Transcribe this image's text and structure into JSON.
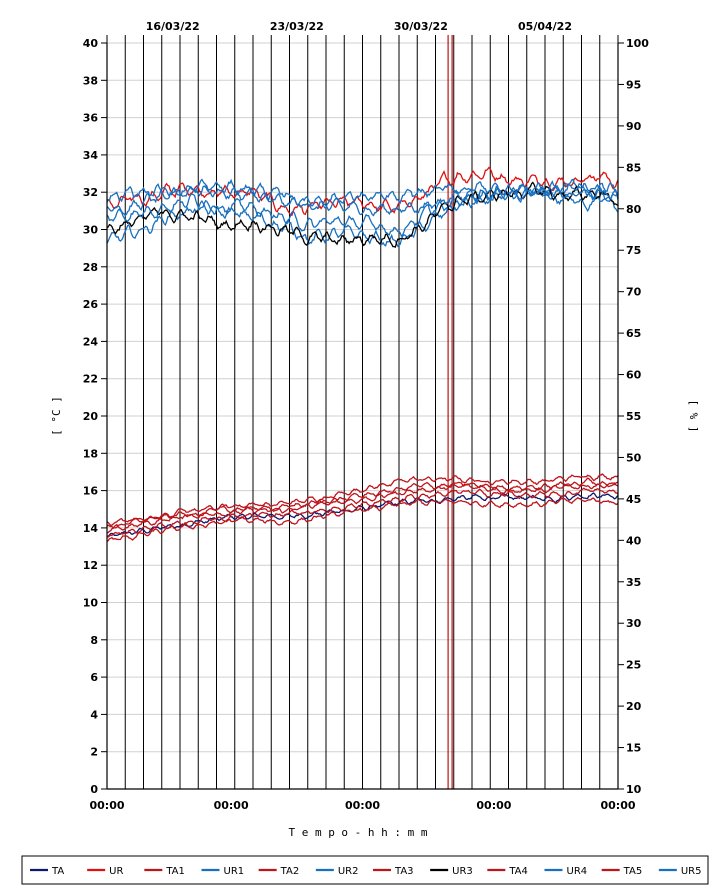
{
  "chart_data": {
    "type": "line",
    "title": "",
    "xlabel": "T e m p o   -   h h : m m",
    "ylabel_left": "[ °C ]",
    "ylabel_right": "[ % ]",
    "y_left_range": [
      0,
      40
    ],
    "y_left_ticks": [
      0,
      2,
      4,
      6,
      8,
      10,
      12,
      14,
      16,
      18,
      20,
      22,
      24,
      26,
      28,
      30,
      32,
      34,
      36,
      38,
      40
    ],
    "y_right_range": [
      10,
      100
    ],
    "y_right_ticks": [
      10,
      15,
      20,
      25,
      30,
      35,
      40,
      45,
      50,
      55,
      60,
      65,
      70,
      75,
      80,
      85,
      90,
      95,
      100
    ],
    "x_range_days": [
      0,
      35
    ],
    "x_tick_labels": [
      {
        "day": 0,
        "label": "00:00"
      },
      {
        "day": 8.5,
        "label": "00:00"
      },
      {
        "day": 17.5,
        "label": "00:00"
      },
      {
        "day": 26.5,
        "label": "00:00"
      },
      {
        "day": 35,
        "label": "00:00"
      }
    ],
    "date_labels": [
      {
        "day": 4.5,
        "label": "16/03/22"
      },
      {
        "day": 13,
        "label": "23/03/22"
      },
      {
        "day": 21.5,
        "label": "30/03/22"
      },
      {
        "day": 30,
        "label": "05/04/22"
      }
    ],
    "marker_day": 23.5,
    "grid": true,
    "legend_position": "bottom",
    "series": [
      {
        "name": "TA",
        "axis": "left",
        "color": "#0a1a6e",
        "x": [
          0,
          3,
          6,
          9,
          12,
          15,
          18,
          21,
          24,
          27,
          30,
          33,
          35
        ],
        "y": [
          13.5,
          13.9,
          14.3,
          14.6,
          14.6,
          14.8,
          15.1,
          15.4,
          15.6,
          15.6,
          15.6,
          15.8,
          15.7
        ]
      },
      {
        "name": "UR",
        "axis": "right",
        "color": "#e01010",
        "x": [
          0,
          2,
          4,
          6,
          8,
          10,
          12,
          14,
          16,
          18,
          20,
          22,
          24,
          26,
          28,
          30,
          32,
          34,
          35
        ],
        "y": [
          80.5,
          81,
          82,
          82.5,
          82,
          82,
          80,
          80,
          80.5,
          80.5,
          80,
          82,
          84,
          84.5,
          83.5,
          83.5,
          83.5,
          84,
          83
        ]
      },
      {
        "name": "TA1",
        "axis": "left",
        "color": "#c0141c",
        "x": [
          0,
          3,
          6,
          9,
          12,
          15,
          18,
          21,
          24,
          27,
          30,
          33,
          35
        ],
        "y": [
          14.2,
          14.6,
          14.9,
          15.2,
          15.3,
          15.6,
          16.2,
          16.6,
          16.6,
          16.5,
          16.5,
          16.8,
          16.8
        ]
      },
      {
        "name": "UR1",
        "axis": "right",
        "color": "#1870c0",
        "x": [
          0,
          2,
          4,
          6,
          8,
          10,
          12,
          14,
          16,
          18,
          20,
          22,
          24,
          26,
          28,
          30,
          32,
          34,
          35
        ],
        "y": [
          80,
          80.5,
          81.5,
          82.5,
          82,
          81.5,
          80.5,
          80.5,
          80,
          80,
          80,
          80.5,
          81,
          82,
          81.5,
          82,
          83,
          82,
          81.5
        ]
      },
      {
        "name": "TA2",
        "axis": "left",
        "color": "#c0141c",
        "x": [
          0,
          3,
          6,
          9,
          12,
          15,
          18,
          21,
          24,
          27,
          30,
          33,
          35
        ],
        "y": [
          13.8,
          14.3,
          14.7,
          14.9,
          14.9,
          15.3,
          15.6,
          16.0,
          16.2,
          16.1,
          16.0,
          16.3,
          16.3
        ]
      },
      {
        "name": "UR2",
        "axis": "right",
        "color": "#1870c0",
        "x": [
          0,
          2,
          4,
          6,
          8,
          10,
          12,
          14,
          16,
          18,
          20,
          22,
          24,
          26,
          28,
          30,
          32,
          34,
          35
        ],
        "y": [
          76,
          77,
          79,
          80,
          79.5,
          79,
          78,
          76.5,
          77,
          76.5,
          76,
          78,
          80.5,
          81,
          81.5,
          81.5,
          81,
          81,
          80
        ]
      },
      {
        "name": "TA3",
        "axis": "left",
        "color": "#c0141c",
        "x": [
          0,
          3,
          6,
          9,
          12,
          15,
          18,
          21,
          24,
          27,
          30,
          33,
          35
        ],
        "y": [
          13.3,
          13.7,
          14.1,
          14.4,
          14.3,
          14.6,
          15.0,
          15.3,
          15.4,
          15.3,
          15.3,
          15.5,
          15.4
        ]
      },
      {
        "name": "UR3",
        "axis": "right",
        "color": "#000000",
        "x": [
          0,
          2,
          4,
          6,
          8,
          10,
          12,
          14,
          16,
          18,
          20,
          22,
          24,
          26,
          28,
          30,
          32,
          34,
          35
        ],
        "y": [
          77.5,
          78.5,
          79.5,
          79,
          78,
          78.5,
          77.5,
          76.5,
          76,
          76.5,
          76.5,
          78.5,
          81,
          81.5,
          82,
          82,
          81.5,
          82,
          80.5
        ]
      },
      {
        "name": "TA4",
        "axis": "left",
        "color": "#c0141c",
        "x": [
          0,
          3,
          6,
          9,
          12,
          15,
          18,
          21,
          24,
          27,
          30,
          33,
          35
        ],
        "y": [
          14.0,
          14.5,
          14.8,
          15.0,
          15.1,
          15.4,
          15.8,
          16.2,
          16.3,
          16.2,
          16.2,
          16.5,
          16.3
        ]
      },
      {
        "name": "UR4",
        "axis": "right",
        "color": "#1870c0",
        "x": [
          0,
          2,
          4,
          6,
          8,
          10,
          12,
          14,
          16,
          18,
          20,
          22,
          24,
          26,
          28,
          30,
          32,
          34,
          35
        ],
        "y": [
          79,
          79.5,
          80.5,
          81,
          80.5,
          80,
          79,
          78,
          78.5,
          78,
          77.5,
          79.5,
          81.5,
          82,
          82,
          82,
          81.5,
          82,
          81
        ]
      },
      {
        "name": "TA5",
        "axis": "left",
        "color": "#c0141c",
        "x": [
          0,
          3,
          6,
          9,
          12,
          15,
          18,
          21,
          24,
          27,
          30,
          33,
          35
        ],
        "y": [
          13.6,
          14.0,
          14.4,
          14.7,
          14.7,
          15.0,
          15.3,
          15.7,
          15.9,
          15.8,
          15.7,
          16.0,
          15.9
        ]
      },
      {
        "name": "UR5",
        "axis": "right",
        "color": "#1870c0",
        "x": [
          0,
          2,
          4,
          6,
          8,
          10,
          12,
          14,
          16,
          18,
          20,
          22,
          24,
          26,
          28,
          30,
          32,
          34,
          35
        ],
        "y": [
          81.5,
          82,
          82,
          82.5,
          82.5,
          82.5,
          81.5,
          81,
          81.5,
          81.5,
          81,
          82,
          82.5,
          82.5,
          82.5,
          82.5,
          82.5,
          82.5,
          82
        ]
      }
    ]
  }
}
